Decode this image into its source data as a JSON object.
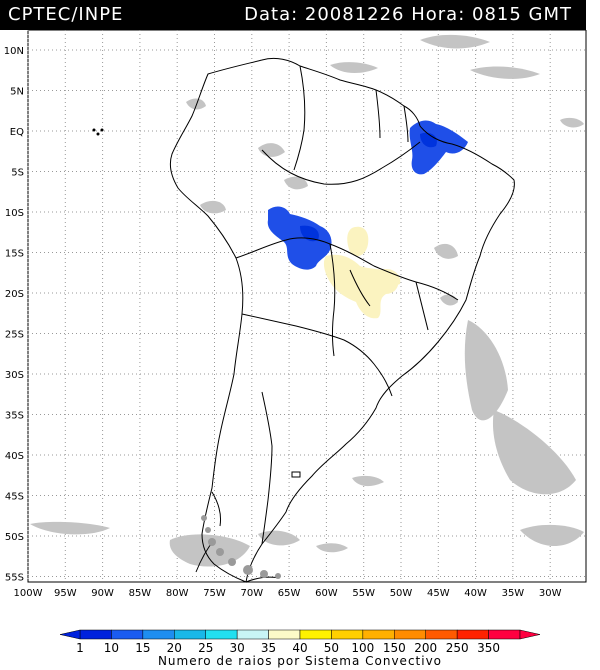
{
  "header": {
    "agency": "CPTEC/INPE",
    "datetime": "Data: 20081226 Hora: 0815 GMT"
  },
  "axes": {
    "lat_labels": [
      "10N",
      "5N",
      "EQ",
      "5S",
      "10S",
      "15S",
      "20S",
      "25S",
      "30S",
      "35S",
      "40S",
      "45S",
      "50S",
      "55S"
    ],
    "lon_labels": [
      "100W",
      "95W",
      "90W",
      "85W",
      "80W",
      "75W",
      "70W",
      "65W",
      "60W",
      "55W",
      "50W",
      "45W",
      "40W",
      "35W",
      "30W"
    ]
  },
  "legend": {
    "title": "Numero de raios por Sistema Convectivo",
    "ticks": [
      "1",
      "10",
      "15",
      "20",
      "25",
      "30",
      "35",
      "40",
      "50",
      "100",
      "150",
      "200",
      "250",
      "350"
    ],
    "colors": [
      "#0022dd",
      "#1a5cf0",
      "#1e8ef0",
      "#19b8e8",
      "#22e0f0",
      "#c8f5f5",
      "#fcfac8",
      "#fff200",
      "#ffd000",
      "#ffb000",
      "#ff8c00",
      "#ff5a00",
      "#ff2200",
      "#ff0040"
    ]
  },
  "colors": {
    "storm_dark": "#0033dd",
    "storm_light": "#1f4fe8",
    "low_activity": "#fbf3c0",
    "cloud_gray": "#bdbdbd",
    "land_outline": "#000000"
  }
}
